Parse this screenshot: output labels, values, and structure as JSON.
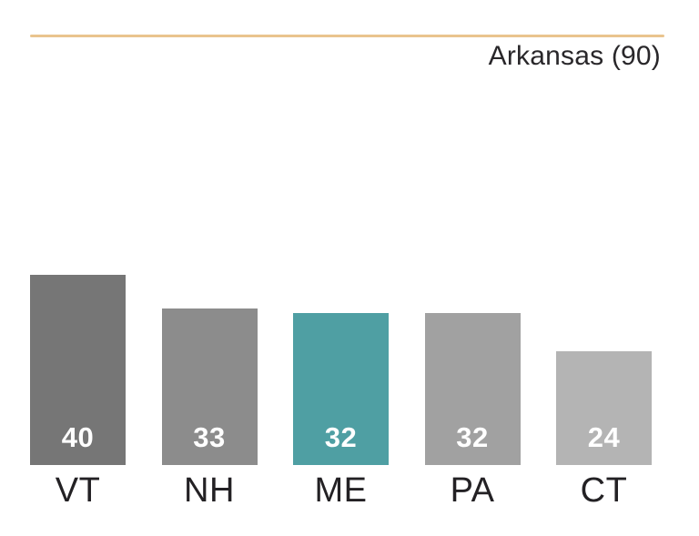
{
  "header": {
    "title": "Arkansas (90)"
  },
  "colors": {
    "rule": "#e9c48e",
    "highlight": "#4f9fa3",
    "value_text": "#ffffff",
    "category_text": "#232124",
    "title_text": "#29272a"
  },
  "chart_data": {
    "type": "bar",
    "title": "Arkansas (90)",
    "categories": [
      "VT",
      "NH",
      "ME",
      "PA",
      "CT"
    ],
    "values": [
      40,
      33,
      32,
      32,
      24
    ],
    "bar_colors": [
      "#767676",
      "#8c8c8c",
      "#4f9fa3",
      "#a1a1a1",
      "#b4b4b4"
    ],
    "highlighted_category": "ME",
    "value_labels_inside_bars": true,
    "xlabel": "",
    "ylabel": "",
    "ylim": [
      0,
      98
    ],
    "axes_visible": false,
    "grid": false,
    "legend": false
  }
}
